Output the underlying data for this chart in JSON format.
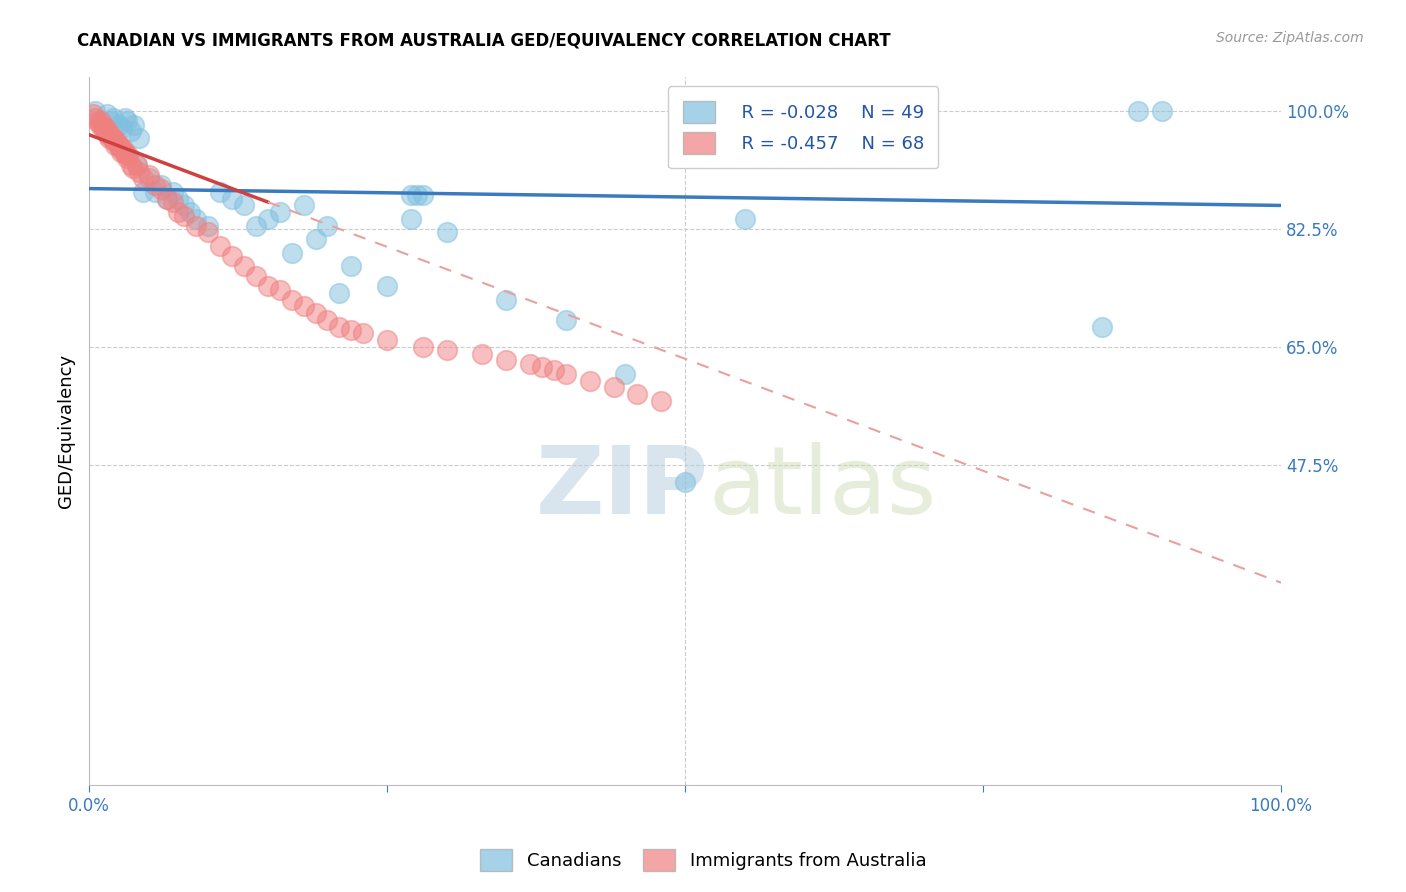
{
  "title": "CANADIAN VS IMMIGRANTS FROM AUSTRALIA GED/EQUIVALENCY CORRELATION CHART",
  "source": "Source: ZipAtlas.com",
  "ylabel": "GED/Equivalency",
  "watermark_zip": "ZIP",
  "watermark_atlas": "atlas",
  "legend_r1": "R = -0.028",
  "legend_n1": "N = 49",
  "legend_r2": "R = -0.457",
  "legend_n2": "N = 68",
  "blue_color": "#7fbfdf",
  "pink_color": "#f08080",
  "trendline_blue_color": "#3a7abf",
  "trendline_pink_solid_color": "#d04040",
  "trendline_pink_dashed_color": "#e8a0a0",
  "canadians_x": [
    0.5,
    1.5,
    1.8,
    2.0,
    2.5,
    2.8,
    3.0,
    3.2,
    3.5,
    3.8,
    4.0,
    4.2,
    4.5,
    5.0,
    5.5,
    6.0,
    6.5,
    7.0,
    7.5,
    8.0,
    8.5,
    9.0,
    10.0,
    11.0,
    12.0,
    13.0,
    14.0,
    15.0,
    16.0,
    17.0,
    18.0,
    19.0,
    20.0,
    21.0,
    22.0,
    25.0,
    27.0,
    30.0,
    35.0,
    40.0,
    45.0,
    50.0,
    55.0,
    85.0,
    88.0,
    90.0,
    27.0,
    27.5,
    28.0
  ],
  "canadians_y": [
    100.0,
    99.5,
    98.5,
    99.0,
    98.0,
    97.5,
    99.0,
    98.5,
    97.0,
    98.0,
    92.0,
    96.0,
    88.0,
    90.0,
    88.0,
    89.0,
    87.0,
    88.0,
    87.0,
    86.0,
    85.0,
    84.0,
    83.0,
    88.0,
    87.0,
    86.0,
    83.0,
    84.0,
    85.0,
    79.0,
    86.0,
    81.0,
    83.0,
    73.0,
    77.0,
    74.0,
    84.0,
    82.0,
    72.0,
    69.0,
    61.0,
    45.0,
    84.0,
    68.0,
    100.0,
    100.0,
    87.5,
    87.5,
    87.5
  ],
  "immigrants_x": [
    0.3,
    0.5,
    0.7,
    0.9,
    1.0,
    1.1,
    1.2,
    1.3,
    1.4,
    1.5,
    1.6,
    1.7,
    1.8,
    1.9,
    2.0,
    2.1,
    2.2,
    2.3,
    2.4,
    2.5,
    2.6,
    2.7,
    2.8,
    2.9,
    3.0,
    3.1,
    3.2,
    3.3,
    3.5,
    3.7,
    4.0,
    4.2,
    4.5,
    5.0,
    5.5,
    6.0,
    6.5,
    7.0,
    7.5,
    8.0,
    9.0,
    10.0,
    11.0,
    12.0,
    13.0,
    14.0,
    15.0,
    16.0,
    17.0,
    18.0,
    19.0,
    20.0,
    21.0,
    22.0,
    23.0,
    25.0,
    28.0,
    30.0,
    33.0,
    35.0,
    37.0,
    38.0,
    39.0,
    40.0,
    42.0,
    44.0,
    46.0,
    48.0
  ],
  "immigrants_y": [
    99.5,
    99.0,
    98.5,
    98.0,
    98.5,
    98.0,
    97.5,
    97.0,
    97.5,
    97.0,
    96.5,
    96.0,
    96.5,
    96.0,
    96.0,
    95.5,
    95.0,
    95.5,
    95.0,
    95.0,
    94.5,
    94.0,
    94.5,
    94.0,
    94.0,
    93.5,
    93.0,
    93.5,
    92.0,
    91.5,
    92.0,
    91.0,
    90.0,
    90.5,
    89.0,
    88.5,
    87.0,
    86.5,
    85.0,
    84.5,
    83.0,
    82.0,
    80.0,
    78.5,
    77.0,
    75.5,
    74.0,
    73.5,
    72.0,
    71.0,
    70.0,
    69.0,
    68.0,
    67.5,
    67.0,
    66.0,
    65.0,
    64.5,
    64.0,
    63.0,
    62.5,
    62.0,
    61.5,
    61.0,
    60.0,
    59.0,
    58.0,
    57.0
  ],
  "blue_trendline": {
    "x": [
      0.0,
      100.0
    ],
    "y": [
      88.5,
      86.0
    ]
  },
  "pink_trendline_solid": {
    "x": [
      0.0,
      15.0
    ],
    "y": [
      96.5,
      86.5
    ]
  },
  "pink_trendline_dashed": {
    "x": [
      15.0,
      100.0
    ],
    "y": [
      86.5,
      30.0
    ]
  },
  "xlim": [
    0.0,
    100.0
  ],
  "ylim": [
    0.0,
    105.0
  ],
  "yticks": [
    100.0,
    82.5,
    65.0,
    47.5
  ],
  "ytick_labels": [
    "100.0%",
    "82.5%",
    "65.0%",
    "47.5%"
  ],
  "xtick_left_label": "0.0%",
  "xtick_right_label": "100.0%"
}
